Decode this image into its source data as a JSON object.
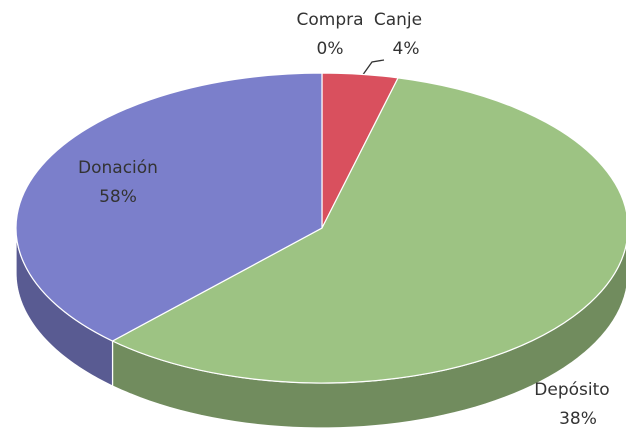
{
  "chart_data": {
    "type": "pie3d",
    "categories": [
      "Compra",
      "Canje",
      "Donación",
      "Depósito"
    ],
    "values": [
      0,
      4,
      58,
      38
    ],
    "value_labels": [
      "0%",
      "4%",
      "58%",
      "38%"
    ],
    "colors": [
      "#f0a050",
      "#d9505e",
      "#9dc383",
      "#7b7fcb"
    ]
  }
}
